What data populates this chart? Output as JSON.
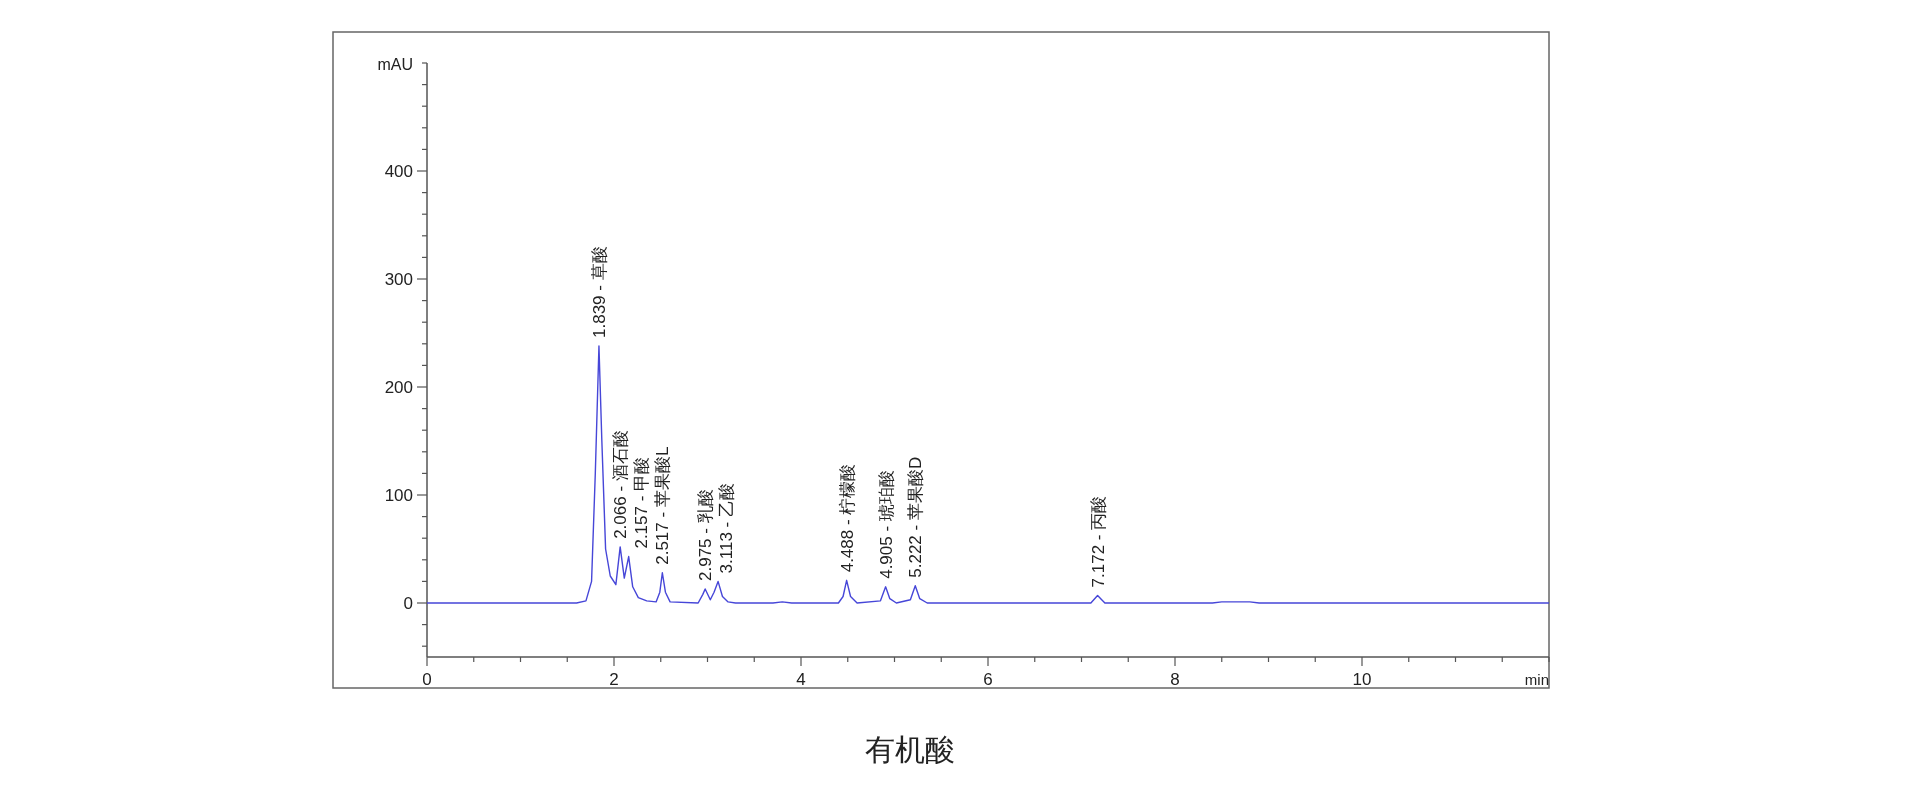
{
  "chart_data": {
    "type": "line",
    "title": "有机酸",
    "xlabel": "min",
    "ylabel": "mAU",
    "x": [
      0,
      1.6,
      1.7,
      1.76,
      1.8,
      1.839,
      1.87,
      1.91,
      1.96,
      2.02,
      2.066,
      2.11,
      2.157,
      2.2,
      2.26,
      2.35,
      2.45,
      2.49,
      2.517,
      2.55,
      2.6,
      2.9,
      2.95,
      2.975,
      3.03,
      3.07,
      3.113,
      3.16,
      3.22,
      3.3,
      3.7,
      3.8,
      3.9,
      4.4,
      4.45,
      4.488,
      4.53,
      4.6,
      4.85,
      4.905,
      4.95,
      5.02,
      5.17,
      5.222,
      5.27,
      5.35,
      7.1,
      7.172,
      7.25,
      8.4,
      8.5,
      8.8,
      8.9,
      12
    ],
    "series": [
      {
        "color": "#4646d8",
        "values": [
          0,
          0,
          2,
          20,
          120,
          238,
          150,
          50,
          25,
          17,
          52,
          23,
          43,
          15,
          5,
          2,
          1,
          10,
          28,
          10,
          1,
          0,
          8,
          13,
          3,
          10,
          20,
          6,
          1,
          0,
          0,
          1,
          0,
          0,
          6,
          21,
          6,
          0,
          2,
          15,
          4,
          0,
          3,
          16,
          4,
          0,
          0,
          7,
          0,
          0,
          1,
          1,
          0,
          0
        ]
      }
    ],
    "xlim": [
      0,
      12
    ],
    "ylim": [
      -50,
      500
    ],
    "xticks": [
      0,
      {
        "value": 0.5,
        "label": null
      },
      {
        "value": 1,
        "label": null
      },
      {
        "value": 1.5,
        "label": null
      },
      2,
      {
        "value": 2.5,
        "label": null
      },
      {
        "value": 3,
        "label": null
      },
      {
        "value": 3.5,
        "label": null
      },
      4,
      {
        "value": 4.5,
        "label": null
      },
      {
        "value": 5,
        "label": null
      },
      {
        "value": 5.5,
        "label": null
      },
      6,
      {
        "value": 6.5,
        "label": null
      },
      {
        "value": 7,
        "label": null
      },
      {
        "value": 7.5,
        "label": null
      },
      8,
      {
        "value": 8.5,
        "label": null
      },
      {
        "value": 9,
        "label": null
      },
      {
        "value": 9.5,
        "label": null
      },
      10,
      {
        "value": 10.5,
        "label": null
      },
      {
        "value": 11,
        "label": null
      },
      {
        "value": 11.5,
        "label": null
      },
      {
        "value": 12,
        "label": null
      }
    ],
    "yticks": [
      {
        "value": -40,
        "label": null
      },
      {
        "value": -20,
        "label": null
      },
      0,
      {
        "value": 20,
        "label": null
      },
      {
        "value": 40,
        "label": null
      },
      {
        "value": 60,
        "label": null
      },
      {
        "value": 80,
        "label": null
      },
      100,
      {
        "value": 120,
        "label": null
      },
      {
        "value": 140,
        "label": null
      },
      {
        "value": 160,
        "label": null
      },
      {
        "value": 180,
        "label": null
      },
      200,
      {
        "value": 220,
        "label": null
      },
      {
        "value": 240,
        "label": null
      },
      {
        "value": 260,
        "label": null
      },
      {
        "value": 280,
        "label": null
      },
      300,
      {
        "value": 320,
        "label": null
      },
      {
        "value": 340,
        "label": null
      },
      {
        "value": 360,
        "label": null
      },
      {
        "value": 380,
        "label": null
      },
      400,
      {
        "value": 420,
        "label": null
      },
      {
        "value": 440,
        "label": null
      },
      {
        "value": 460,
        "label": null
      },
      {
        "value": 480,
        "label": null
      },
      {
        "value": 500,
        "label": null
      }
    ],
    "grid": false,
    "marker": "none",
    "annotations": [
      {
        "text": "1.839 - 草酸",
        "x": 1.839,
        "y": 238
      },
      {
        "text": "2.066 - 酒石酸",
        "x": 2.066,
        "y": 52
      },
      {
        "text": "2.157 - 甲酸",
        "x": 2.157,
        "y": 43
      },
      {
        "text": "2.517 - 苹果酸L",
        "x": 2.517,
        "y": 28
      },
      {
        "text": "2.975 - 乳酸",
        "x": 2.975,
        "y": 13
      },
      {
        "text": "3.113 - 乙酸",
        "x": 3.113,
        "y": 20
      },
      {
        "text": "4.488 - 柠檬酸",
        "x": 4.488,
        "y": 21
      },
      {
        "text": "4.905 - 琥珀酸",
        "x": 4.905,
        "y": 15
      },
      {
        "text": "5.222 - 苹果酸D",
        "x": 5.222,
        "y": 16
      },
      {
        "text": "7.172 - 丙酸",
        "x": 7.172,
        "y": 7
      }
    ]
  }
}
